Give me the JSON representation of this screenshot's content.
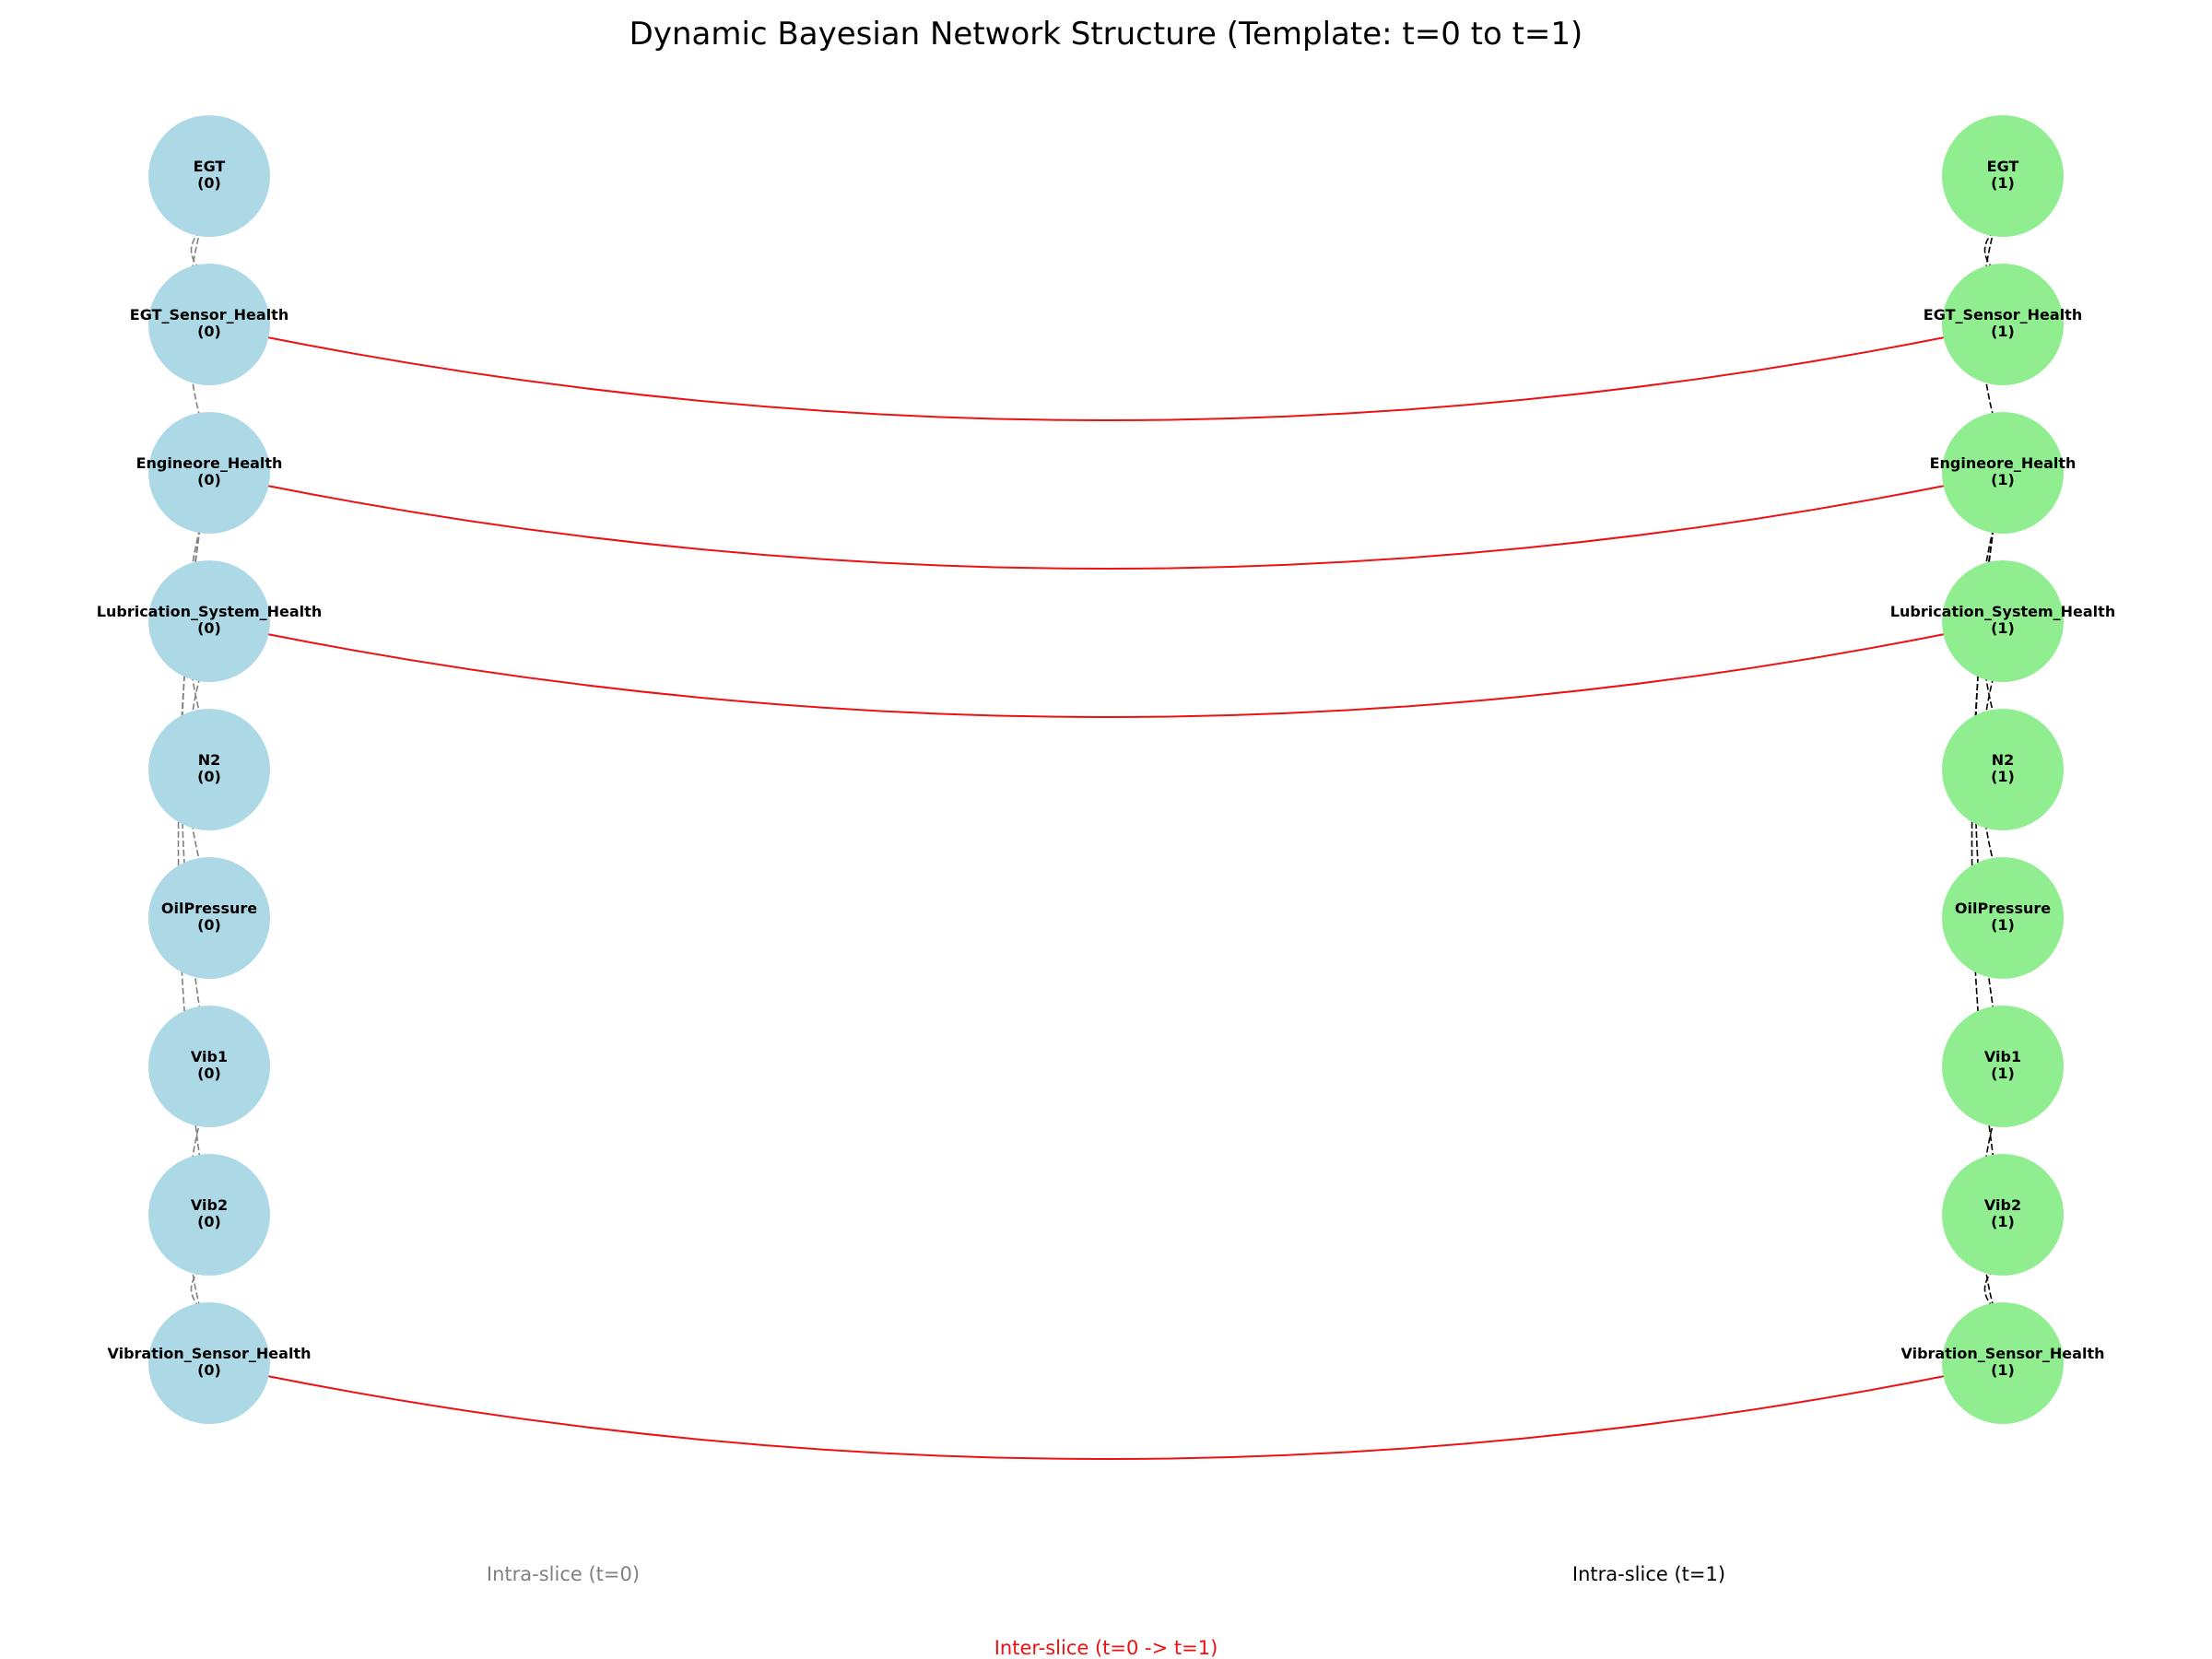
{
  "title": "Dynamic Bayesian Network Structure (Template: t=0 to t=1)",
  "colors": {
    "slice0_node": "#add8e6",
    "slice1_node": "#90ee90",
    "intra0_edge": "#808080",
    "intra1_edge": "#000000",
    "inter_edge": "#ee1111"
  },
  "nodes": [
    {
      "id": "EGT",
      "label": "EGT"
    },
    {
      "id": "EGT_Sensor_Health",
      "label": "EGT_Sensor_Health"
    },
    {
      "id": "Engineore_Health",
      "label": "Engineore_Health"
    },
    {
      "id": "Lubrication_System_Health",
      "label": "Lubrication_System_Health"
    },
    {
      "id": "N2",
      "label": "N2"
    },
    {
      "id": "OilPressure",
      "label": "OilPressure"
    },
    {
      "id": "Vib1",
      "label": "Vib1"
    },
    {
      "id": "Vib2",
      "label": "Vib2"
    },
    {
      "id": "Vibration_Sensor_Health",
      "label": "Vibration_Sensor_Health"
    }
  ],
  "slices": [
    {
      "suffix": "(0)"
    },
    {
      "suffix": "(1)"
    }
  ],
  "intra_edges": [
    [
      "EGT_Sensor_Health",
      "EGT"
    ],
    [
      "Engineore_Health",
      "EGT"
    ],
    [
      "Engineore_Health",
      "N2"
    ],
    [
      "Engineore_Health",
      "Vib1"
    ],
    [
      "Engineore_Health",
      "Vib2"
    ],
    [
      "Lubrication_System_Health",
      "OilPressure"
    ],
    [
      "Vibration_Sensor_Health",
      "Vib1"
    ],
    [
      "Vibration_Sensor_Health",
      "Vib2"
    ]
  ],
  "inter_edges": [
    "EGT_Sensor_Health",
    "Engineore_Health",
    "Lubrication_System_Health",
    "Vibration_Sensor_Health"
  ],
  "legend": {
    "intra0": "Intra-slice (t=0)",
    "intra1": "Intra-slice (t=1)",
    "inter": "Inter-slice (t=0 -> t=1)"
  }
}
